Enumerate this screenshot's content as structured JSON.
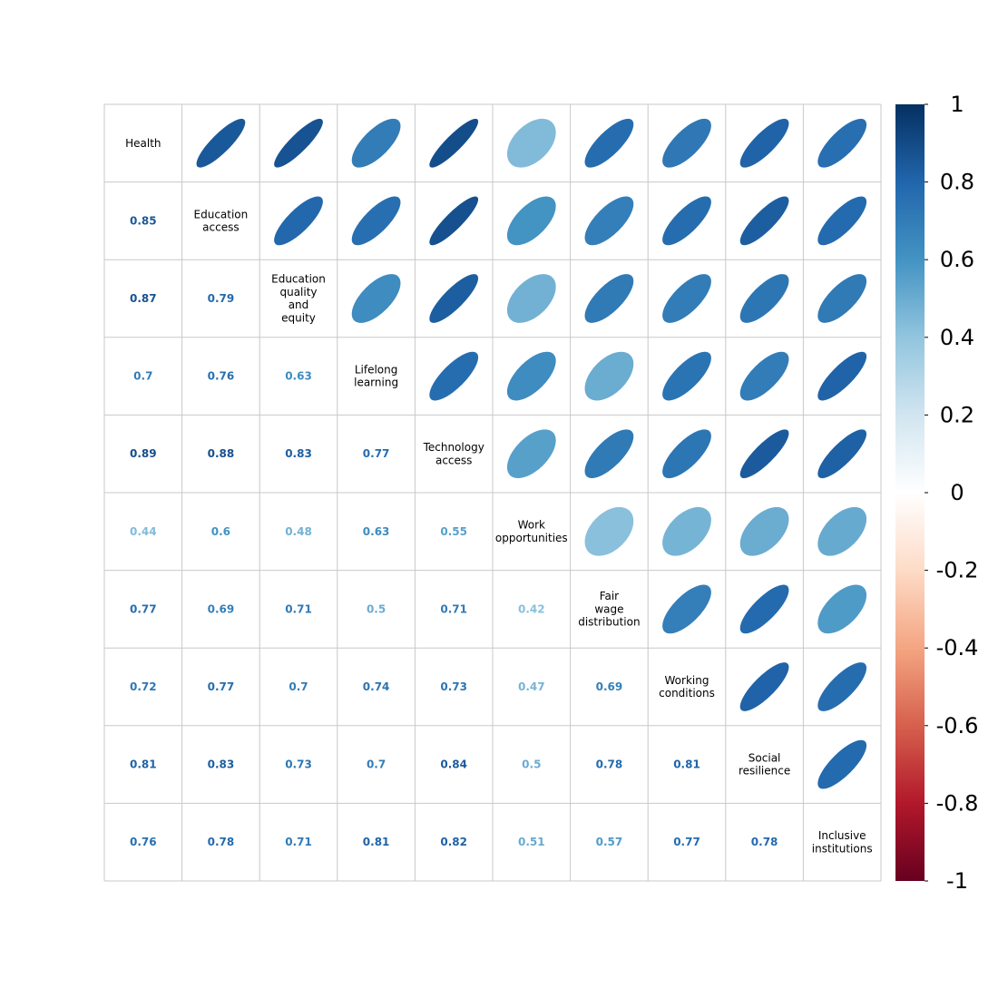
{
  "chart_data": {
    "type": "heatmap",
    "variables": [
      "Health",
      "Education access",
      "Education quality and equity",
      "Lifelong learning",
      "Technology access",
      "Work opportunities",
      "Fair wage distribution",
      "Working conditions",
      "Social resilience",
      "Inclusive institutions"
    ],
    "diagonal_label_lines": [
      [
        "Health"
      ],
      [
        "Education",
        "access"
      ],
      [
        "Education",
        "quality",
        "and",
        "equity"
      ],
      [
        "Lifelong",
        "learning"
      ],
      [
        "Technology",
        "access"
      ],
      [
        "Work",
        "opportunities"
      ],
      [
        "Fair",
        "wage",
        "distribution"
      ],
      [
        "Working",
        "conditions"
      ],
      [
        "Social",
        "resilience"
      ],
      [
        "Inclusive",
        "institutions"
      ]
    ],
    "correlations": [
      [
        1,
        0.85,
        0.87,
        0.7,
        0.89,
        0.44,
        0.77,
        0.72,
        0.81,
        0.76
      ],
      [
        0.85,
        1,
        0.79,
        0.76,
        0.88,
        0.6,
        0.69,
        0.77,
        0.83,
        0.78
      ],
      [
        0.87,
        0.79,
        1,
        0.63,
        0.83,
        0.48,
        0.71,
        0.7,
        0.73,
        0.71
      ],
      [
        0.7,
        0.76,
        0.63,
        1,
        0.77,
        0.63,
        0.5,
        0.74,
        0.7,
        0.81
      ],
      [
        0.89,
        0.88,
        0.83,
        0.77,
        1,
        0.55,
        0.71,
        0.73,
        0.84,
        0.82
      ],
      [
        0.44,
        0.6,
        0.48,
        0.63,
        0.55,
        1,
        0.42,
        0.47,
        0.5,
        0.51
      ],
      [
        0.77,
        0.69,
        0.71,
        0.5,
        0.71,
        0.42,
        1,
        0.69,
        0.78,
        0.57
      ],
      [
        0.72,
        0.77,
        0.7,
        0.74,
        0.73,
        0.47,
        0.69,
        1,
        0.81,
        0.77
      ],
      [
        0.81,
        0.83,
        0.73,
        0.7,
        0.84,
        0.5,
        0.78,
        0.81,
        1,
        0.78
      ],
      [
        0.76,
        0.78,
        0.71,
        0.81,
        0.82,
        0.51,
        0.57,
        0.77,
        0.78,
        1
      ]
    ],
    "upper_triangle": "ellipse",
    "lower_triangle": "number",
    "color_scale": {
      "min": -1,
      "max": 1,
      "ticks": [
        "1",
        "0.8",
        "0.6",
        "0.4",
        "0.2",
        "0",
        "-0.2",
        "-0.4",
        "-0.6",
        "-0.8",
        "-1"
      ],
      "stops": [
        "#67001F",
        "#B2182B",
        "#D6604D",
        "#F4A582",
        "#FDDBC7",
        "#FFFFFF",
        "#D1E5F0",
        "#92C5DE",
        "#4393C3",
        "#2166AC",
        "#053061"
      ]
    },
    "grid_color": "#c8c8c8"
  }
}
